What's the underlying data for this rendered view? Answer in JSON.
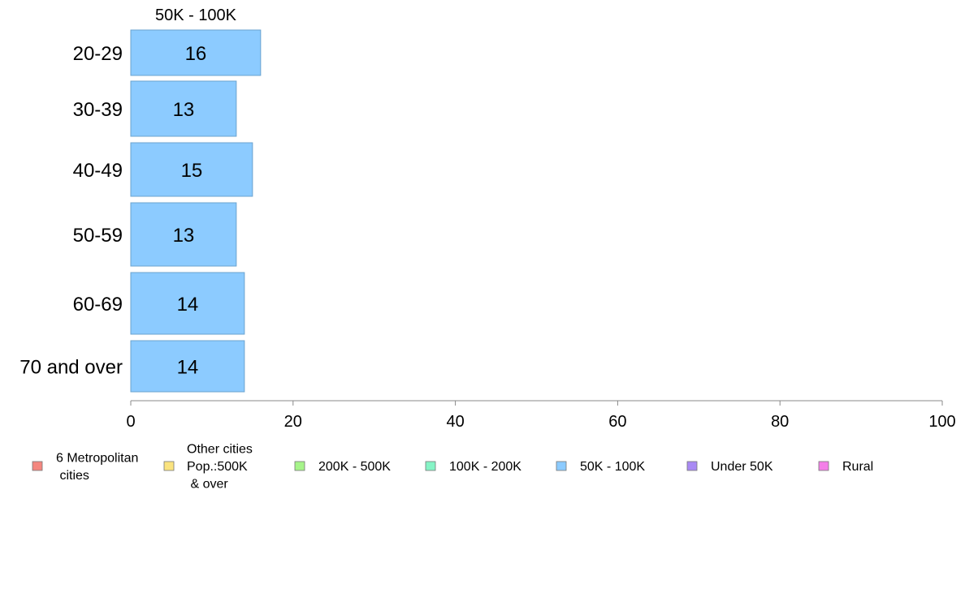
{
  "chart_data": {
    "type": "bar",
    "orientation": "horizontal",
    "title": "50K - 100K",
    "categories": [
      "20-29",
      "30-39",
      "40-49",
      "50-59",
      "60-69",
      "70 and over"
    ],
    "values": [
      16,
      13,
      15,
      13,
      14,
      14
    ],
    "xlim": [
      0,
      100
    ],
    "xticks": [
      0,
      20,
      40,
      60,
      80,
      100
    ],
    "grid": false,
    "bar_color": "#8ccbff",
    "bar_stroke": "#6aa3cf",
    "legend_placement": "bottom",
    "legend": [
      {
        "label": "6 Metropolitan\n cities",
        "color": "#f4877f"
      },
      {
        "label": "Other cities\nPop.:500K\n & over",
        "color": "#fae37f"
      },
      {
        "label": "200K - 500K",
        "color": "#a6f48a"
      },
      {
        "label": "100K - 200K",
        "color": "#86f4c6"
      },
      {
        "label": "50K - 100K",
        "color": "#8ccbff"
      },
      {
        "label": "Under 50K",
        "color": "#a98af4"
      },
      {
        "label": "Rural",
        "color": "#f47fe8"
      }
    ]
  }
}
